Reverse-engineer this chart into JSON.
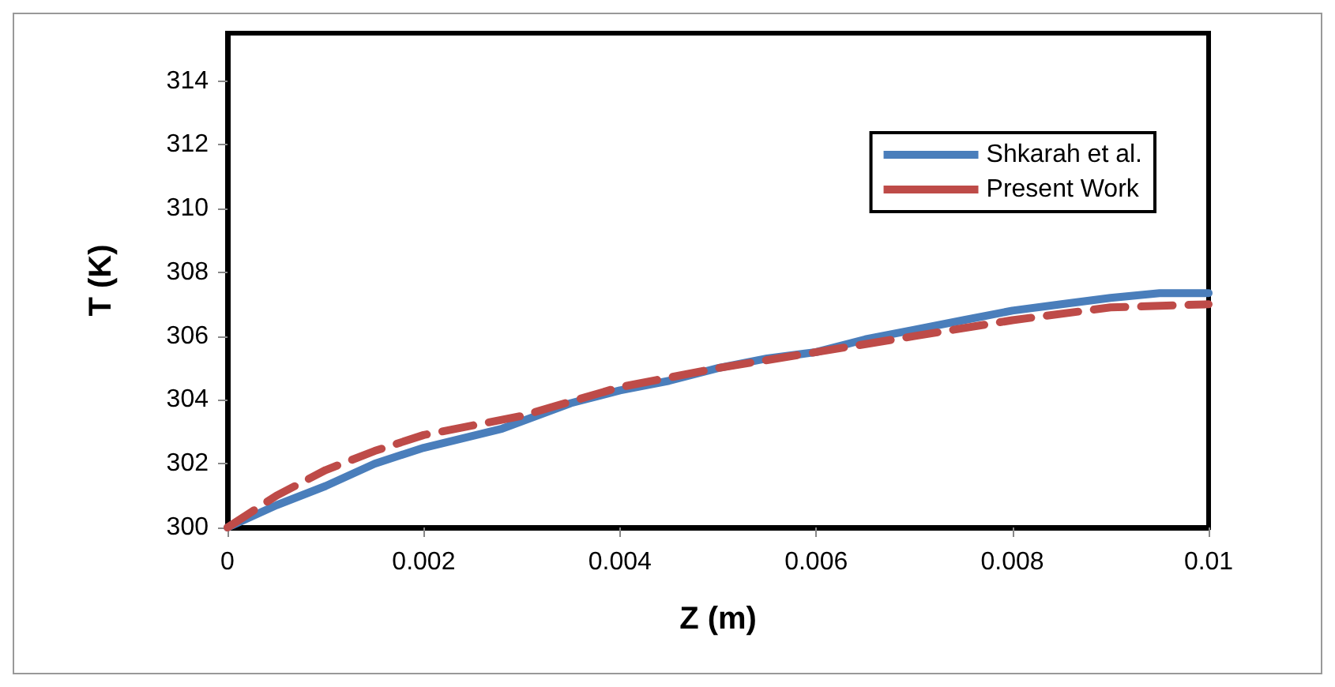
{
  "chart_data": {
    "type": "line",
    "xlabel": "Z (m)",
    "ylabel": "T (K)",
    "xlim": [
      0,
      0.01
    ],
    "xticks": [
      0,
      0.002,
      0.004,
      0.006,
      0.008,
      0.01
    ],
    "ylim": [
      300,
      315.5
    ],
    "yticks": [
      300,
      302,
      304,
      306,
      308,
      310,
      312,
      314
    ],
    "grid": false,
    "legend": "top right",
    "marker": "none",
    "series": [
      {
        "name": "Shkarah et al.",
        "color": "#4a7ebb",
        "line_style": "solid",
        "x": [
          0,
          0.0005,
          0.001,
          0.0015,
          0.002,
          0.0028,
          0.0035,
          0.004,
          0.0045,
          0.005,
          0.0055,
          0.006,
          0.0065,
          0.007,
          0.0075,
          0.008,
          0.0085,
          0.009,
          0.0095,
          0.01
        ],
        "values": [
          300,
          300.7,
          301.3,
          302,
          302.5,
          303.1,
          303.9,
          304.3,
          304.6,
          305,
          305.3,
          305.5,
          305.9,
          306.2,
          306.5,
          306.8,
          307,
          307.2,
          307.35,
          307.35
        ]
      },
      {
        "name": "Present Work",
        "color": "#be4b48",
        "line_style": "dashed",
        "x": [
          0,
          0.0005,
          0.001,
          0.0015,
          0.002,
          0.003,
          0.004,
          0.005,
          0.006,
          0.007,
          0.008,
          0.009,
          0.01
        ],
        "values": [
          300,
          301,
          301.8,
          302.4,
          302.9,
          303.5,
          304.4,
          305,
          305.5,
          306,
          306.5,
          306.9,
          307
        ]
      }
    ]
  }
}
